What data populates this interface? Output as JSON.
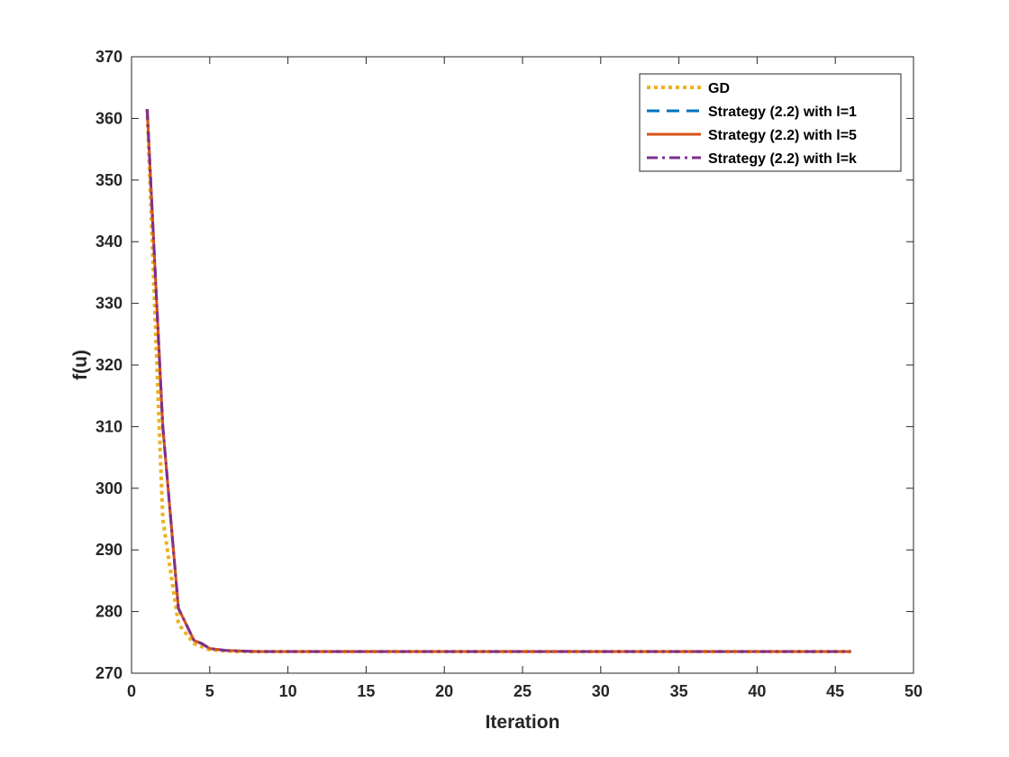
{
  "chart_data": {
    "type": "line",
    "title": "",
    "xlabel": "Iteration",
    "ylabel": "f(u)",
    "xlim": [
      0,
      50
    ],
    "ylim": [
      270,
      370
    ],
    "xticks": [
      0,
      5,
      10,
      15,
      20,
      25,
      30,
      35,
      40,
      45,
      50
    ],
    "yticks": [
      270,
      280,
      290,
      300,
      310,
      320,
      330,
      340,
      350,
      360,
      370
    ],
    "grid": false,
    "legend_position": "top-right",
    "series": [
      {
        "name": "GD",
        "color": "#EDB120",
        "style": "dotted",
        "x": [
          1,
          2,
          3,
          4,
          5,
          6,
          7,
          8,
          9,
          10,
          12,
          14,
          16,
          18,
          20,
          25,
          30,
          35,
          40,
          45,
          46
        ],
        "y": [
          361.5,
          295,
          278,
          274.8,
          273.8,
          273.6,
          273.5,
          273.5,
          273.5,
          273.5,
          273.5,
          273.5,
          273.5,
          273.5,
          273.5,
          273.5,
          273.5,
          273.5,
          273.5,
          273.5,
          273.5
        ]
      },
      {
        "name": "Strategy (2.2) with l=1",
        "color": "#0072BD",
        "style": "dashed",
        "x": [
          1,
          2,
          3,
          4,
          4.5,
          5,
          6,
          7,
          8,
          9,
          10,
          12,
          14,
          16,
          18,
          20,
          25,
          30,
          35,
          40,
          45,
          46
        ],
        "y": [
          361.5,
          310,
          280.5,
          275.3,
          274.8,
          274.0,
          273.7,
          273.6,
          273.5,
          273.5,
          273.5,
          273.5,
          273.5,
          273.5,
          273.5,
          273.5,
          273.5,
          273.5,
          273.5,
          273.5,
          273.5,
          273.5
        ]
      },
      {
        "name": "Strategy (2.2) with l=5",
        "color": "#D95319",
        "style": "solid",
        "x": [
          1,
          2,
          3,
          4,
          4.5,
          5,
          6,
          7,
          8,
          9,
          10,
          12,
          14,
          16,
          18,
          20,
          25,
          30,
          35,
          40,
          45,
          46
        ],
        "y": [
          361.5,
          310,
          280.5,
          275.3,
          274.8,
          274.0,
          273.7,
          273.6,
          273.5,
          273.5,
          273.5,
          273.5,
          273.5,
          273.5,
          273.5,
          273.5,
          273.5,
          273.5,
          273.5,
          273.5,
          273.5,
          273.5
        ]
      },
      {
        "name": "Strategy (2.2) with l=k",
        "color": "#7E2F8E",
        "style": "dashdot",
        "x": [
          1,
          2,
          3,
          4,
          4.5,
          5,
          6,
          7,
          8,
          9,
          10,
          12,
          14,
          16,
          18,
          20,
          25,
          30,
          35,
          40,
          45,
          46
        ],
        "y": [
          361.5,
          310,
          280.5,
          275.3,
          274.8,
          274.0,
          273.7,
          273.6,
          273.5,
          273.5,
          273.5,
          273.5,
          273.5,
          273.5,
          273.5,
          273.5,
          273.5,
          273.5,
          273.5,
          273.5,
          273.5,
          273.5
        ]
      }
    ]
  }
}
